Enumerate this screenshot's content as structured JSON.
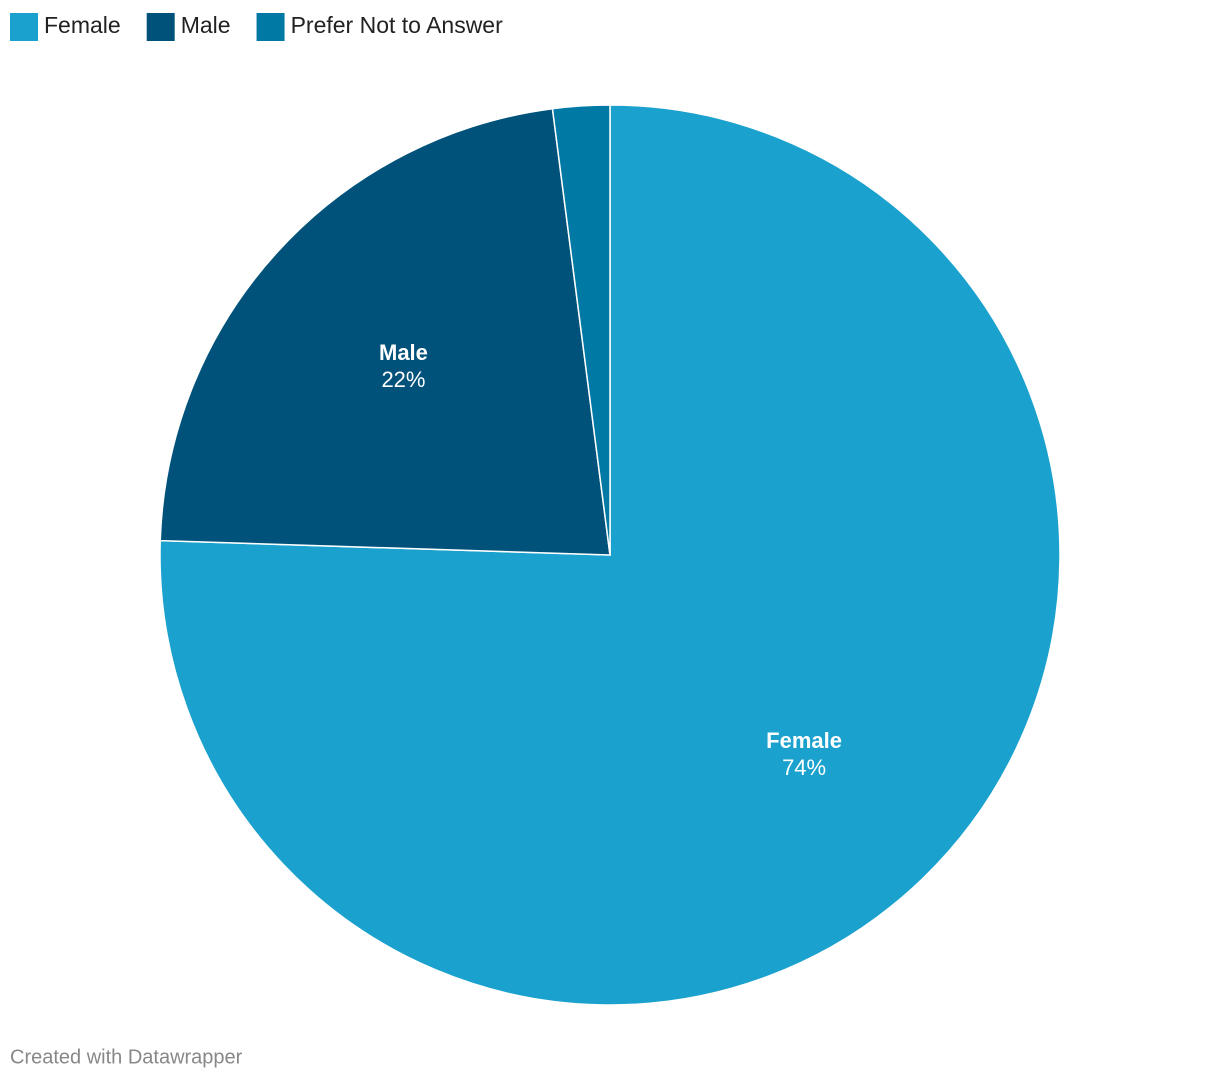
{
  "chart_data": {
    "type": "pie",
    "categories": [
      "Female",
      "Male",
      "Prefer Not to Answer"
    ],
    "values": [
      74,
      22,
      2
    ],
    "value_labels": [
      "74%",
      "22%",
      null
    ],
    "colors": [
      "#1aa1cd",
      "#01527a",
      "#0079a5"
    ],
    "legend": "top-left",
    "credit": "Created with Datawrapper"
  }
}
